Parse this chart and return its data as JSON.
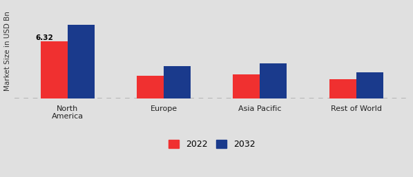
{
  "categories": [
    "North\nAmerica",
    "Europe",
    "Asia Pacific",
    "Rest of World"
  ],
  "values_2022": [
    6.32,
    2.5,
    2.7,
    2.1
  ],
  "values_2032": [
    8.2,
    3.6,
    3.9,
    2.9
  ],
  "bar_color_2022": "#f03030",
  "bar_color_2032": "#1a3a8c",
  "ylabel": "Market Size in USD Bn",
  "legend_labels": [
    "2022",
    "2032"
  ],
  "annotation_text": "6.32",
  "background_color": "#e0e0e0",
  "bar_width": 0.28,
  "ylim": [
    0,
    10.5
  ],
  "grid_linestyle": "--",
  "grid_color": "#aaaaaa",
  "grid_linewidth": 1.2
}
